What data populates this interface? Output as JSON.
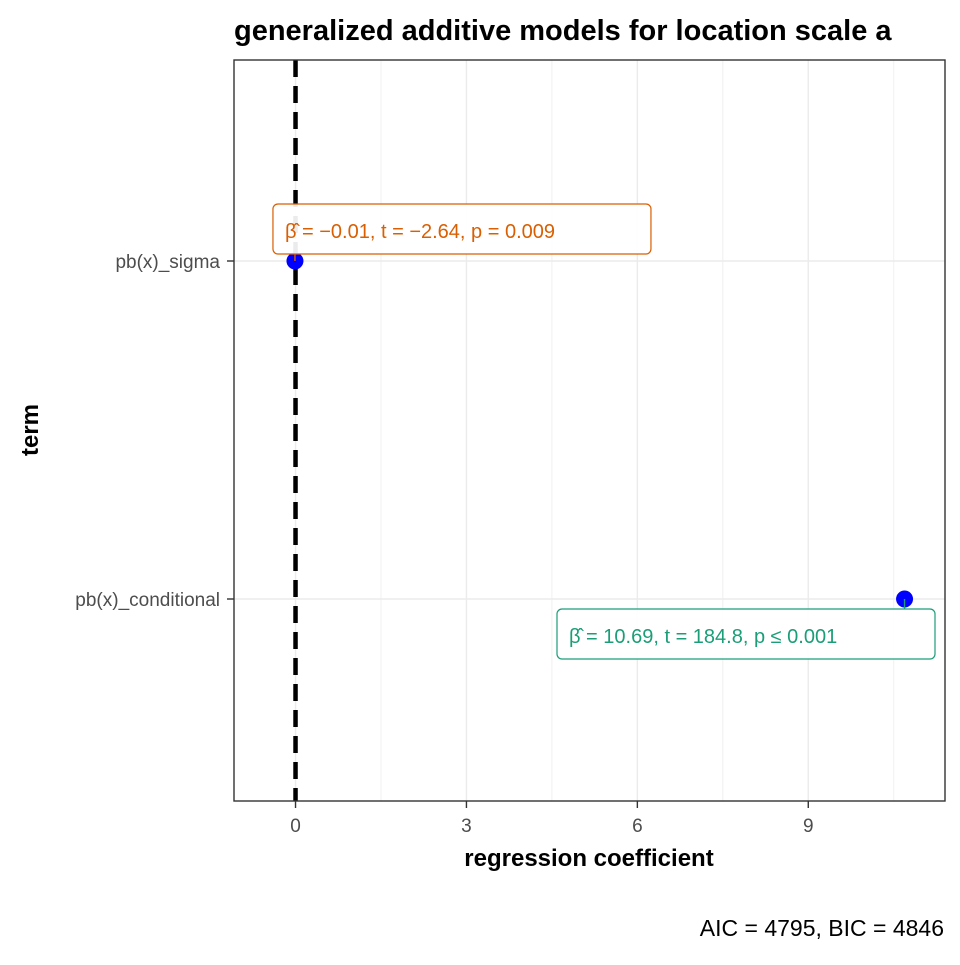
{
  "chart_data": {
    "type": "scatter",
    "title": "generalized additive models for location scale a",
    "xlabel": "regression coefficient",
    "ylabel": "term",
    "caption": "AIC = 4795, BIC = 4846",
    "xlim": [
      -1.08,
      11.4
    ],
    "xticks": [
      0,
      3,
      6,
      9
    ],
    "grid": true,
    "reference_line": {
      "x": 0,
      "style": "dashed",
      "color": "#000000"
    },
    "terms": [
      "pb(x)_conditional",
      "pb(x)_sigma"
    ],
    "points": [
      {
        "term": "pb(x)_sigma",
        "estimate": -0.01,
        "label": "β̂ = −0.01,  t = −2.64,  p = 0.009",
        "label_color": "#D95F02",
        "label_side": "above"
      },
      {
        "term": "pb(x)_conditional",
        "estimate": 10.69,
        "label": "β̂ = 10.69,  t = 184.8,  p ≤ 0.001",
        "label_color": "#1B9E77",
        "label_side": "below"
      }
    ],
    "point_color": "#0000FF"
  }
}
